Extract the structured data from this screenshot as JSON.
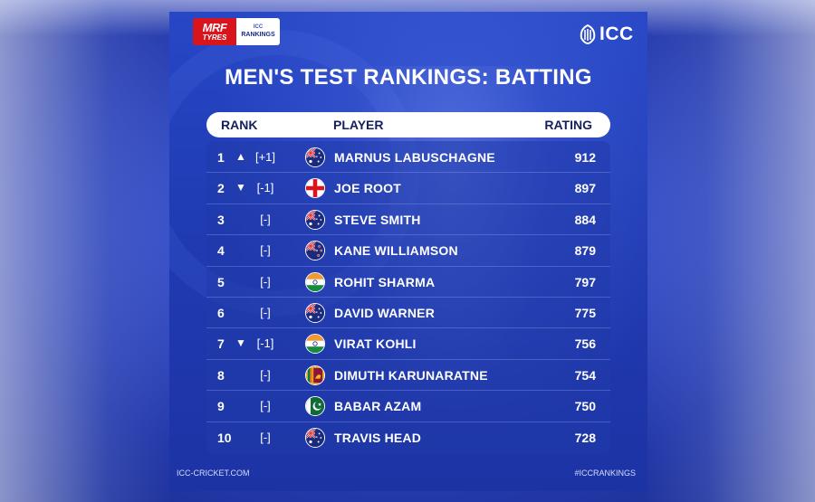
{
  "sponsor": {
    "mrf_line1": "MRF",
    "mrf_line2": "TYRES",
    "icc_small": "ICC",
    "rankings_word": "RANKINGS"
  },
  "icc_logo": {
    "text": "ICC",
    "icon": "icc-crest-icon"
  },
  "title": "MEN'S TEST RANKINGS: BATTING",
  "headers": {
    "rank": "RANK",
    "player": "PLAYER",
    "rating": "RATING"
  },
  "rows": [
    {
      "rank": "1",
      "arrow": "▲",
      "change": "[+1]",
      "flag": "australia-flag-icon",
      "player": "MARNUS LABUSCHAGNE",
      "rating": "912"
    },
    {
      "rank": "2",
      "arrow": "▼",
      "change": "[-1]",
      "flag": "england-flag-icon",
      "player": "JOE ROOT",
      "rating": "897"
    },
    {
      "rank": "3",
      "arrow": "",
      "change": "[-]",
      "flag": "australia-flag-icon",
      "player": "STEVE SMITH",
      "rating": "884"
    },
    {
      "rank": "4",
      "arrow": "",
      "change": "[-]",
      "flag": "new-zealand-flag-icon",
      "player": "KANE WILLIAMSON",
      "rating": "879"
    },
    {
      "rank": "5",
      "arrow": "",
      "change": "[-]",
      "flag": "india-flag-icon",
      "player": "ROHIT SHARMA",
      "rating": "797"
    },
    {
      "rank": "6",
      "arrow": "",
      "change": "[-]",
      "flag": "australia-flag-icon",
      "player": "DAVID WARNER",
      "rating": "775"
    },
    {
      "rank": "7",
      "arrow": "▼",
      "change": "[-1]",
      "flag": "india-flag-icon",
      "player": "VIRAT KOHLI",
      "rating": "756"
    },
    {
      "rank": "8",
      "arrow": "",
      "change": "[-]",
      "flag": "sri-lanka-flag-icon",
      "player": "DIMUTH KARUNARATNE",
      "rating": "754"
    },
    {
      "rank": "9",
      "arrow": "",
      "change": "[-]",
      "flag": "pakistan-flag-icon",
      "player": "BABAR AZAM",
      "rating": "750"
    },
    {
      "rank": "10",
      "arrow": "",
      "change": "[-]",
      "flag": "australia-flag-icon",
      "player": "TRAVIS HEAD",
      "rating": "728"
    }
  ],
  "footer": {
    "left": "ICC-CRICKET.COM",
    "right": "#ICCRANKINGS"
  },
  "colors": {
    "card_blue": "#2342bd",
    "header_bar": "#ffffff",
    "header_text": "#15205e",
    "mrf_red": "#d8141d"
  }
}
